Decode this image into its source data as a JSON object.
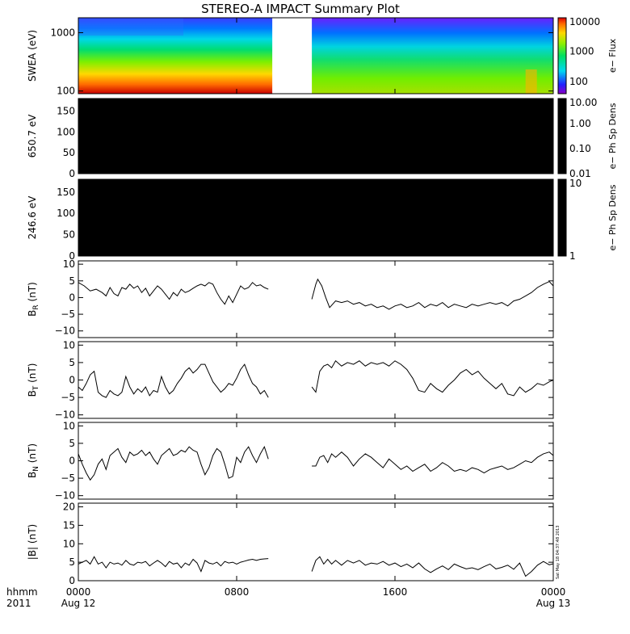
{
  "title": "STEREO-A IMPACT Summary Plot",
  "timestamp": "Sat May 18 04:37:48 2013",
  "xaxis": {
    "ticks": [
      {
        "hour": 0,
        "time": "0000",
        "date": "Aug 12"
      },
      {
        "hour": 8,
        "time": "0800",
        "date": ""
      },
      {
        "hour": 16,
        "time": "1600",
        "date": ""
      },
      {
        "hour": 24,
        "time": "0000",
        "date": "Aug 13"
      }
    ],
    "corner_label_1": "hhmm",
    "corner_label_2": "2011",
    "xlim_hours": [
      0,
      24
    ]
  },
  "colors": {
    "spectrogram": [
      "#c80000",
      "#ff6a00",
      "#ffd800",
      "#7cf000",
      "#00dd70",
      "#00d8e8",
      "#0078ff",
      "#6a00ff"
    ],
    "trace": "#000000",
    "background": "#ffffff"
  },
  "chart_data": [
    {
      "type": "heatmap",
      "name": "swea",
      "ylabel": "SWEA (eV)",
      "yscale": "log",
      "ylim": [
        90,
        1800
      ],
      "yticks": [
        {
          "v": 100,
          "label": "100"
        },
        {
          "v": 1000,
          "label": "1000"
        }
      ],
      "colorbar_label": "e− Flux",
      "colorbar_ticks": [
        {
          "v": 100,
          "label": "100"
        },
        {
          "v": 1000,
          "label": "1000"
        },
        {
          "v": 10000,
          "label": "10000"
        }
      ],
      "colorbar_range": [
        40,
        13000
      ],
      "data_gaps_hours": [
        [
          9.8,
          11.8
        ]
      ]
    },
    {
      "type": "heatmap",
      "name": "pad650",
      "ylabel": "650.7 eV",
      "ylim": [
        0,
        180
      ],
      "yticks": [
        {
          "v": 0,
          "label": "0"
        },
        {
          "v": 50,
          "label": "50"
        },
        {
          "v": 100,
          "label": "100"
        },
        {
          "v": 150,
          "label": "150"
        }
      ],
      "colorbar_label": "e− Ph Sp Dens",
      "colorbar_ticks": [
        {
          "v": 0.01,
          "label": "0.01"
        },
        {
          "v": 0.1,
          "label": "0.10"
        },
        {
          "v": 1,
          "label": "1.00"
        },
        {
          "v": 10,
          "label": "10.00"
        }
      ],
      "colorbar_range": [
        0.01,
        10
      ],
      "fill": "#000000"
    },
    {
      "type": "heatmap",
      "name": "pad246",
      "ylabel": "246.6 eV",
      "ylim": [
        0,
        180
      ],
      "yticks": [
        {
          "v": 0,
          "label": "0"
        },
        {
          "v": 50,
          "label": "50"
        },
        {
          "v": 100,
          "label": "100"
        },
        {
          "v": 150,
          "label": "150"
        }
      ],
      "colorbar_label": "e− Ph Sp Dens",
      "colorbar_ticks": [
        {
          "v": 1,
          "label": "1"
        },
        {
          "v": 10,
          "label": "10"
        }
      ],
      "colorbar_range": [
        1,
        10
      ],
      "fill": "#000000"
    },
    {
      "type": "line",
      "name": "br",
      "ylabel_main": "B",
      "ylabel_sub": "R",
      "ylabel_unit": " (nT)",
      "ylim": [
        -12,
        11
      ],
      "yticks": [
        {
          "v": -10,
          "label": "−10"
        },
        {
          "v": -5,
          "label": "−5"
        },
        {
          "v": 0,
          "label": "0"
        },
        {
          "v": 5,
          "label": "5"
        },
        {
          "v": 10,
          "label": "10"
        }
      ],
      "segments": [
        {
          "x": [
            0,
            0.3,
            0.6,
            0.9,
            1.2,
            1.4,
            1.6,
            1.8,
            2.0,
            2.2,
            2.4,
            2.6,
            2.8,
            3.0,
            3.2,
            3.4,
            3.6,
            3.8,
            4.0,
            4.2,
            4.4,
            4.6,
            4.8,
            5.0,
            5.2,
            5.4,
            5.6,
            5.8,
            6.0,
            6.2,
            6.4,
            6.6,
            6.8,
            7.0,
            7.2,
            7.4,
            7.6,
            7.8,
            8.0,
            8.2,
            8.4,
            8.6,
            8.8,
            9.0,
            9.2,
            9.4,
            9.6
          ],
          "y": [
            4.5,
            3.5,
            2,
            2.5,
            1.5,
            0.5,
            3,
            1.2,
            0.5,
            3,
            2.5,
            4,
            2.8,
            3.5,
            1.5,
            2.8,
            0.5,
            2,
            3.5,
            2.5,
            1,
            -0.5,
            1.5,
            0.5,
            2.5,
            1.5,
            2,
            2.8,
            3.5,
            4,
            3.5,
            4.5,
            4,
            1.5,
            -0.5,
            -2,
            0.5,
            -1.5,
            1,
            3.5,
            2.5,
            3,
            4.5,
            3.5,
            3.8,
            3,
            2.5
          ]
        },
        {
          "x": [
            11.8,
            12.0,
            12.1,
            12.3,
            12.5,
            12.7,
            13.0,
            13.3,
            13.6,
            13.9,
            14.2,
            14.5,
            14.8,
            15.1,
            15.4,
            15.7,
            16.0,
            16.3,
            16.6,
            16.9,
            17.2,
            17.5,
            17.8,
            18.1,
            18.4,
            18.7,
            19.0,
            19.3,
            19.6,
            19.9,
            20.2,
            20.5,
            20.8,
            21.1,
            21.4,
            21.7,
            22.0,
            22.3,
            22.6,
            22.9,
            23.2,
            23.5,
            23.8,
            24.0
          ],
          "y": [
            -0.5,
            4,
            5.5,
            3.5,
            0,
            -3,
            -1,
            -1.5,
            -1,
            -2,
            -1.5,
            -2.5,
            -2,
            -3,
            -2.5,
            -3.5,
            -2.5,
            -2,
            -3,
            -2.5,
            -1.5,
            -3,
            -2,
            -2.5,
            -1.5,
            -3,
            -2,
            -2.5,
            -3,
            -2,
            -2.5,
            -2,
            -1.5,
            -2,
            -1.5,
            -2.5,
            -1,
            -0.5,
            0.5,
            1.5,
            3,
            4,
            4.8,
            3.5
          ]
        }
      ]
    },
    {
      "type": "line",
      "name": "bt",
      "ylabel_main": "B",
      "ylabel_sub": "T",
      "ylabel_unit": " (nT)",
      "ylim": [
        -11,
        11
      ],
      "yticks": [
        {
          "v": -10,
          "label": "−10"
        },
        {
          "v": -5,
          "label": "−5"
        },
        {
          "v": 0,
          "label": "0"
        },
        {
          "v": 5,
          "label": "5"
        },
        {
          "v": 10,
          "label": "10"
        }
      ],
      "segments": [
        {
          "x": [
            0,
            0.2,
            0.4,
            0.6,
            0.8,
            1.0,
            1.2,
            1.4,
            1.6,
            1.8,
            2.0,
            2.2,
            2.4,
            2.6,
            2.8,
            3.0,
            3.2,
            3.4,
            3.6,
            3.8,
            4.0,
            4.2,
            4.4,
            4.6,
            4.8,
            5.0,
            5.2,
            5.4,
            5.6,
            5.8,
            6.0,
            6.2,
            6.4,
            6.6,
            6.8,
            7.0,
            7.2,
            7.4,
            7.6,
            7.8,
            8.0,
            8.2,
            8.4,
            8.6,
            8.8,
            9.0,
            9.2,
            9.4,
            9.6
          ],
          "y": [
            -2,
            -3,
            -1,
            1.5,
            2.5,
            -3.5,
            -4.5,
            -5,
            -3,
            -4,
            -4.5,
            -3.5,
            1,
            -2,
            -4,
            -2.5,
            -3.5,
            -2,
            -4.5,
            -3,
            -3.5,
            1,
            -2,
            -4,
            -3,
            -1,
            0.5,
            2.5,
            3.5,
            2,
            3,
            4.5,
            4.5,
            2,
            -0.5,
            -2,
            -3.5,
            -2.5,
            -1,
            -1.5,
            0.5,
            3,
            4.5,
            1.5,
            -1,
            -2,
            -4,
            -3,
            -5
          ]
        },
        {
          "x": [
            11.8,
            12.0,
            12.2,
            12.4,
            12.6,
            12.8,
            13.0,
            13.3,
            13.6,
            13.9,
            14.2,
            14.5,
            14.8,
            15.1,
            15.4,
            15.7,
            16.0,
            16.3,
            16.6,
            16.9,
            17.2,
            17.5,
            17.8,
            18.1,
            18.4,
            18.7,
            19.0,
            19.3,
            19.6,
            19.9,
            20.2,
            20.5,
            20.8,
            21.1,
            21.4,
            21.7,
            22.0,
            22.3,
            22.6,
            22.9,
            23.2,
            23.5,
            23.8,
            24.0
          ],
          "y": [
            -2,
            -3.5,
            2.5,
            4,
            4.5,
            3.5,
            5.5,
            4,
            5,
            4.5,
            5.5,
            4,
            5,
            4.5,
            5,
            4,
            5.5,
            4.5,
            3,
            0.5,
            -3,
            -3.5,
            -1,
            -2.5,
            -3.5,
            -1.5,
            0,
            2,
            3,
            1.5,
            2.5,
            0.5,
            -1,
            -2.5,
            -1,
            -4,
            -4.5,
            -2,
            -3.5,
            -2.5,
            -1,
            -1.5,
            -0.5,
            0
          ]
        }
      ]
    },
    {
      "type": "line",
      "name": "bn",
      "ylabel_main": "B",
      "ylabel_sub": "N",
      "ylabel_unit": " (nT)",
      "ylim": [
        -11,
        11
      ],
      "yticks": [
        {
          "v": -10,
          "label": "−10"
        },
        {
          "v": -5,
          "label": "−5"
        },
        {
          "v": 0,
          "label": "0"
        },
        {
          "v": 5,
          "label": "5"
        },
        {
          "v": 10,
          "label": "10"
        }
      ],
      "segments": [
        {
          "x": [
            0,
            0.2,
            0.4,
            0.6,
            0.8,
            1.0,
            1.2,
            1.4,
            1.6,
            1.8,
            2.0,
            2.2,
            2.4,
            2.6,
            2.8,
            3.0,
            3.2,
            3.4,
            3.6,
            3.8,
            4.0,
            4.2,
            4.4,
            4.6,
            4.8,
            5.0,
            5.2,
            5.4,
            5.6,
            5.8,
            6.0,
            6.2,
            6.4,
            6.6,
            6.8,
            7.0,
            7.2,
            7.4,
            7.6,
            7.8,
            8.0,
            8.2,
            8.4,
            8.6,
            8.8,
            9.0,
            9.2,
            9.4,
            9.6
          ],
          "y": [
            2,
            -1,
            -3.5,
            -5.5,
            -4,
            -1,
            0.5,
            -2.5,
            1.5,
            2.5,
            3.5,
            1,
            -0.5,
            2.5,
            1.5,
            2,
            3,
            1.5,
            2.5,
            0.5,
            -1,
            1.5,
            2.5,
            3.5,
            1.5,
            2,
            3,
            2.5,
            4,
            3,
            2.5,
            -1,
            -4,
            -2,
            1.5,
            3.5,
            2.5,
            -1,
            -5,
            -4.5,
            1,
            -0.5,
            2.5,
            4,
            1.5,
            -0.5,
            2,
            4,
            0.5
          ]
        },
        {
          "x": [
            11.8,
            12.0,
            12.2,
            12.4,
            12.6,
            12.8,
            13.0,
            13.3,
            13.6,
            13.9,
            14.2,
            14.5,
            14.8,
            15.1,
            15.4,
            15.7,
            16.0,
            16.3,
            16.6,
            16.9,
            17.2,
            17.5,
            17.8,
            18.1,
            18.4,
            18.7,
            19.0,
            19.3,
            19.6,
            19.9,
            20.2,
            20.5,
            20.8,
            21.1,
            21.4,
            21.7,
            22.0,
            22.3,
            22.6,
            22.9,
            23.2,
            23.5,
            23.8,
            24.0
          ],
          "y": [
            -1.5,
            -1.5,
            1,
            1.5,
            -0.5,
            2,
            1,
            2.5,
            1,
            -1.5,
            0.5,
            2,
            1,
            -0.5,
            -2,
            0.5,
            -1,
            -2.5,
            -1.5,
            -3,
            -2,
            -1,
            -3,
            -2,
            -0.5,
            -1.5,
            -3,
            -2.5,
            -3,
            -2,
            -2.5,
            -3.5,
            -2.5,
            -2,
            -1.5,
            -2.5,
            -2,
            -1,
            0,
            -0.5,
            1,
            2,
            2.5,
            1.5
          ]
        }
      ]
    },
    {
      "type": "line",
      "name": "bmag",
      "ylabel_main": "|B|",
      "ylabel_sub": "",
      "ylabel_unit": " (nT)",
      "ylim": [
        0,
        21
      ],
      "yticks": [
        {
          "v": 0,
          "label": "0"
        },
        {
          "v": 5,
          "label": "5"
        },
        {
          "v": 10,
          "label": "10"
        },
        {
          "v": 15,
          "label": "15"
        },
        {
          "v": 20,
          "label": "20"
        }
      ],
      "segments": [
        {
          "x": [
            0,
            0.2,
            0.4,
            0.6,
            0.8,
            1.0,
            1.2,
            1.4,
            1.6,
            1.8,
            2.0,
            2.2,
            2.4,
            2.6,
            2.8,
            3.0,
            3.2,
            3.4,
            3.6,
            3.8,
            4.0,
            4.2,
            4.4,
            4.6,
            4.8,
            5.0,
            5.2,
            5.4,
            5.6,
            5.8,
            6.0,
            6.2,
            6.4,
            6.6,
            6.8,
            7.0,
            7.2,
            7.4,
            7.6,
            7.8,
            8.0,
            8.2,
            8.4,
            8.6,
            8.8,
            9.0,
            9.2,
            9.4,
            9.6
          ],
          "y": [
            4.5,
            5,
            5.5,
            4.5,
            6.5,
            4.5,
            5,
            3.5,
            5,
            4.5,
            4.8,
            4.2,
            5.5,
            4.5,
            4.2,
            5,
            4.8,
            5.2,
            4,
            4.8,
            5.5,
            4.8,
            3.8,
            5.2,
            4.5,
            4.8,
            3.5,
            4.8,
            4.2,
            5.8,
            4.8,
            2.5,
            5.5,
            4.8,
            4.5,
            5,
            4,
            5.2,
            4.8,
            5,
            4.5,
            5,
            5.3,
            5.6,
            5.8,
            5.5,
            5.8,
            5.9,
            6
          ]
        },
        {
          "x": [
            11.8,
            12.0,
            12.2,
            12.4,
            12.6,
            12.8,
            13.0,
            13.3,
            13.6,
            13.9,
            14.2,
            14.5,
            14.8,
            15.1,
            15.4,
            15.7,
            16.0,
            16.3,
            16.6,
            16.9,
            17.2,
            17.5,
            17.8,
            18.1,
            18.4,
            18.7,
            19.0,
            19.3,
            19.6,
            19.9,
            20.2,
            20.5,
            20.8,
            21.1,
            21.4,
            21.7,
            22.0,
            22.3,
            22.6,
            22.9,
            23.2,
            23.5,
            23.8,
            24.0
          ],
          "y": [
            2.5,
            5.5,
            6.5,
            4.5,
            5.8,
            4.5,
            5.5,
            4.2,
            5.5,
            4.8,
            5.5,
            4.2,
            4.8,
            4.5,
            5.2,
            4.2,
            4.8,
            3.8,
            4.5,
            3.5,
            4.8,
            3.2,
            2.2,
            3.2,
            4,
            3,
            4.5,
            3.8,
            3.2,
            3.5,
            3,
            3.8,
            4.5,
            3.2,
            3.6,
            4.2,
            3.1,
            4.8,
            1.2,
            2.5,
            4.2,
            5.2,
            4.3,
            4.6
          ]
        }
      ]
    }
  ]
}
